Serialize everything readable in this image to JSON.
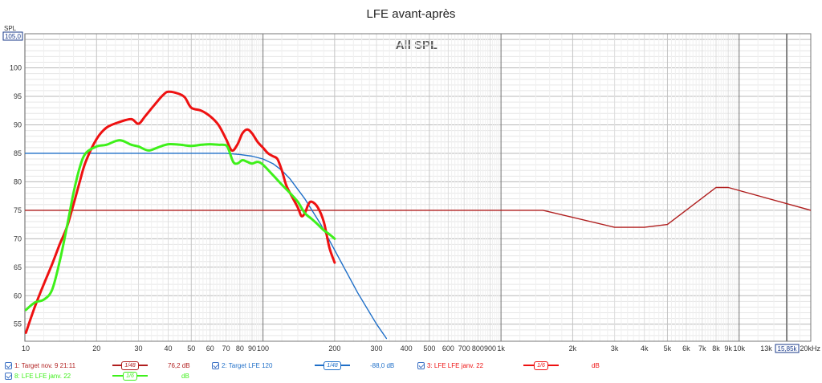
{
  "title": "LFE avant-après",
  "graph_label": "All SPL",
  "colors": {
    "red_dark": "#b01e1e",
    "red": "#ee1111",
    "blue": "#1f6fc8",
    "green": "#3ef01a"
  },
  "chart_data": {
    "type": "line",
    "title": "LFE avant-après",
    "xlabel": "Hz",
    "ylabel": "SPL",
    "x_scale": "log",
    "xlim": [
      10,
      20000
    ],
    "ylim": [
      52,
      106
    ],
    "y_top_readout": "105,0",
    "cursor_readout": "15,85k",
    "cursor_x": 15850,
    "y_ticks": [
      {
        "v": 55,
        "label": "55"
      },
      {
        "v": 60,
        "label": "60"
      },
      {
        "v": 65,
        "label": "65"
      },
      {
        "v": 70,
        "label": "70"
      },
      {
        "v": 75,
        "label": "75"
      },
      {
        "v": 80,
        "label": "80"
      },
      {
        "v": 85,
        "label": "85"
      },
      {
        "v": 90,
        "label": "90"
      },
      {
        "v": 95,
        "label": "95"
      },
      {
        "v": 100,
        "label": "100"
      }
    ],
    "x_ticks": [
      {
        "v": 10,
        "label": "10"
      },
      {
        "v": 20,
        "label": "20"
      },
      {
        "v": 30,
        "label": "30"
      },
      {
        "v": 40,
        "label": "40"
      },
      {
        "v": 50,
        "label": "50"
      },
      {
        "v": 60,
        "label": "60"
      },
      {
        "v": 70,
        "label": "70"
      },
      {
        "v": 80,
        "label": "80"
      },
      {
        "v": 90,
        "label": "90"
      },
      {
        "v": 100,
        "label": "100"
      },
      {
        "v": 200,
        "label": "200"
      },
      {
        "v": 300,
        "label": "300"
      },
      {
        "v": 400,
        "label": "400"
      },
      {
        "v": 500,
        "label": "500"
      },
      {
        "v": 600,
        "label": "600"
      },
      {
        "v": 700,
        "label": "700"
      },
      {
        "v": 800,
        "label": "800"
      },
      {
        "v": 900,
        "label": "900"
      },
      {
        "v": 1000,
        "label": "1k"
      },
      {
        "v": 2000,
        "label": "2k"
      },
      {
        "v": 3000,
        "label": "3k"
      },
      {
        "v": 4000,
        "label": "4k"
      },
      {
        "v": 5000,
        "label": "5k"
      },
      {
        "v": 6000,
        "label": "6k"
      },
      {
        "v": 7000,
        "label": "7k"
      },
      {
        "v": 8000,
        "label": "8k"
      },
      {
        "v": 9000,
        "label": "9k"
      },
      {
        "v": 10000,
        "label": "10k"
      },
      {
        "v": 13000,
        "label": "13k"
      },
      {
        "v": 20000,
        "label": "20kHz"
      }
    ],
    "series": [
      {
        "name": "1: Target nov. 9 21:11",
        "color": "#b01e1e",
        "width": 1.4,
        "x": [
          10,
          1500,
          3000,
          4000,
          5000,
          8000,
          9000,
          20000
        ],
        "y": [
          75,
          75,
          72,
          72,
          72.5,
          79,
          79,
          75
        ]
      },
      {
        "name": "2: Target LFE 120",
        "color": "#1f6fc8",
        "width": 1.4,
        "x": [
          10,
          50,
          70,
          80,
          90,
          100,
          110,
          120,
          130,
          150,
          175,
          200,
          250,
          300,
          330
        ],
        "y": [
          85,
          85,
          85,
          84.8,
          84.5,
          84,
          83.2,
          82,
          80.5,
          77,
          72.5,
          68,
          60.5,
          55,
          52.5
        ]
      },
      {
        "name": "3: LFE LFE janv. 22",
        "color": "#ee1111",
        "width": 3,
        "x": [
          10.1,
          11,
          12,
          13,
          14,
          15,
          16,
          17,
          18,
          20,
          22,
          25,
          28,
          30,
          32,
          35,
          38,
          40,
          44,
          47,
          50,
          55,
          60,
          65,
          70,
          74,
          78,
          82,
          86,
          90,
          95,
          100,
          105,
          110,
          115,
          120,
          125,
          130,
          140,
          145,
          150,
          155,
          160,
          170,
          180,
          190,
          200
        ],
        "y": [
          53.5,
          58,
          62,
          65.5,
          69,
          72,
          76,
          80,
          83.5,
          87.5,
          89.5,
          90.5,
          91,
          90.2,
          91.5,
          93.5,
          95.2,
          95.8,
          95.5,
          94.8,
          93,
          92.5,
          91.5,
          90,
          87.5,
          85.5,
          86.5,
          88.5,
          89.2,
          88.5,
          87,
          86,
          85,
          84.5,
          84,
          82,
          79.5,
          78,
          75.5,
          74,
          74.5,
          76,
          76.5,
          75.5,
          73,
          68.5,
          65.8
        ]
      },
      {
        "name": "8: LFE LFE janv. 22",
        "color": "#3ef01a",
        "width": 3,
        "x": [
          10.1,
          11,
          12,
          13,
          14,
          15,
          16,
          17,
          18,
          20,
          22,
          25,
          28,
          30,
          33,
          36,
          40,
          45,
          50,
          55,
          60,
          65,
          70,
          72,
          75,
          78,
          82,
          86,
          90,
          95,
          100,
          110,
          120,
          130,
          140,
          150,
          160,
          170,
          180,
          190,
          200
        ],
        "y": [
          57.5,
          58.8,
          59.3,
          61,
          66,
          72,
          78,
          82.5,
          85,
          86.2,
          86.5,
          87.3,
          86.5,
          86.2,
          85.5,
          86,
          86.6,
          86.5,
          86.3,
          86.5,
          86.6,
          86.5,
          86.4,
          85.5,
          83.5,
          83.2,
          83.8,
          83.5,
          83.2,
          83.5,
          83,
          81.2,
          79.5,
          78,
          76.5,
          74.5,
          73.5,
          72.5,
          71.5,
          70.8,
          70
        ]
      }
    ]
  },
  "legend": [
    {
      "label": "1: Target nov. 9 21:11",
      "smoothing": "1/48",
      "value": "76,2 dB",
      "color": "#b01e1e"
    },
    {
      "label": "2: Target LFE 120",
      "smoothing": "1/48",
      "value": "-88,0 dB",
      "color": "#1f6fc8"
    },
    {
      "label": "3: LFE LFE janv. 22",
      "smoothing": "1/6",
      "value": "dB",
      "color": "#ee1111"
    },
    {
      "label": "8: LFE LFE janv. 22",
      "smoothing": "1/6",
      "value": "dB",
      "color": "#3ef01a"
    }
  ]
}
